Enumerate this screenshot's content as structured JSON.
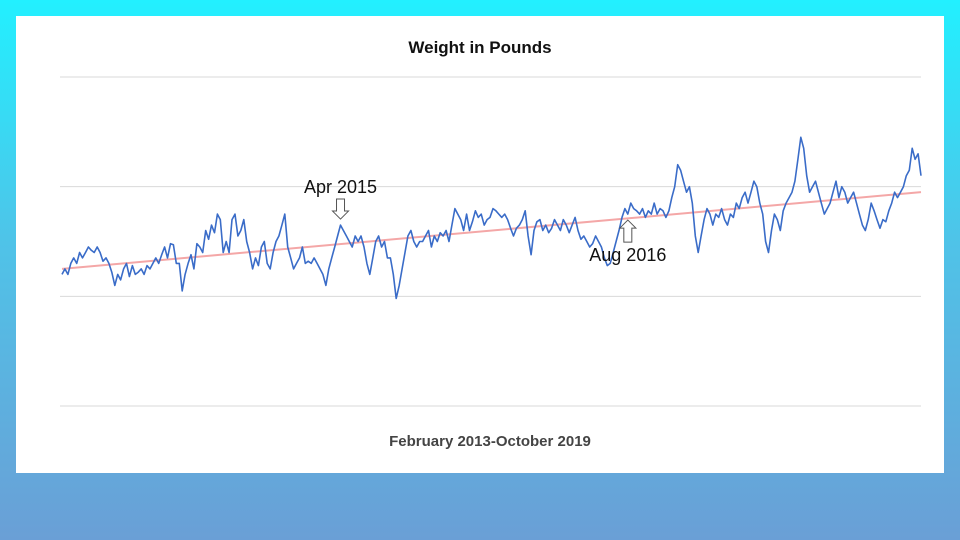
{
  "chart_data": {
    "type": "line",
    "title": "Weight in Pounds",
    "xlabel": "February 2013-October 2019",
    "ylabel": "",
    "x_range": [
      "2013-02",
      "2019-10"
    ],
    "ylim": [
      0,
      3
    ],
    "gridlines": 4,
    "grid": true,
    "colors": {
      "series": "#3a6cc8",
      "trend": "#f4a7a7",
      "grid": "#d9d9d9"
    },
    "series": [
      {
        "values": [
          1.2,
          1.25,
          1.2,
          1.3,
          1.35,
          1.3,
          1.4,
          1.35,
          1.4,
          1.45,
          1.42,
          1.4,
          1.45,
          1.4,
          1.32,
          1.35,
          1.3,
          1.22,
          1.1,
          1.2,
          1.15,
          1.25,
          1.3,
          1.18,
          1.28,
          1.2,
          1.22,
          1.25,
          1.2,
          1.28,
          1.25,
          1.3,
          1.35,
          1.3,
          1.38,
          1.45,
          1.35,
          1.48,
          1.47,
          1.3,
          1.3,
          1.05,
          1.2,
          1.3,
          1.38,
          1.25,
          1.48,
          1.45,
          1.4,
          1.6,
          1.52,
          1.65,
          1.58,
          1.75,
          1.7,
          1.4,
          1.5,
          1.4,
          1.7,
          1.75,
          1.55,
          1.6,
          1.7,
          1.5,
          1.4,
          1.25,
          1.35,
          1.28,
          1.45,
          1.5,
          1.3,
          1.25,
          1.4,
          1.5,
          1.55,
          1.65,
          1.75,
          1.45,
          1.35,
          1.25,
          1.3,
          1.35,
          1.45,
          1.3,
          1.32,
          1.3,
          1.35,
          1.3,
          1.25,
          1.2,
          1.1,
          1.25,
          1.35,
          1.45,
          1.55,
          1.65,
          1.6,
          1.55,
          1.5,
          1.45,
          1.55,
          1.5,
          1.55,
          1.45,
          1.3,
          1.2,
          1.35,
          1.5,
          1.55,
          1.45,
          1.5,
          1.35,
          1.35,
          1.2,
          0.98,
          1.1,
          1.25,
          1.4,
          1.55,
          1.6,
          1.5,
          1.45,
          1.5,
          1.5,
          1.55,
          1.6,
          1.45,
          1.55,
          1.5,
          1.58,
          1.55,
          1.6,
          1.5,
          1.65,
          1.8,
          1.75,
          1.7,
          1.6,
          1.75,
          1.6,
          1.68,
          1.78,
          1.72,
          1.75,
          1.65,
          1.7,
          1.72,
          1.8,
          1.78,
          1.75,
          1.72,
          1.75,
          1.7,
          1.62,
          1.55,
          1.62,
          1.65,
          1.7,
          1.78,
          1.55,
          1.38,
          1.6,
          1.68,
          1.7,
          1.6,
          1.65,
          1.58,
          1.62,
          1.7,
          1.65,
          1.6,
          1.7,
          1.65,
          1.58,
          1.65,
          1.72,
          1.6,
          1.52,
          1.55,
          1.5,
          1.45,
          1.48,
          1.55,
          1.5,
          1.45,
          1.35,
          1.28,
          1.3,
          1.4,
          1.5,
          1.6,
          1.72,
          1.8,
          1.75,
          1.85,
          1.8,
          1.78,
          1.75,
          1.8,
          1.72,
          1.78,
          1.75,
          1.85,
          1.75,
          1.8,
          1.78,
          1.72,
          1.78,
          1.9,
          2.0,
          2.2,
          2.15,
          2.05,
          1.95,
          2.0,
          1.85,
          1.55,
          1.4,
          1.55,
          1.7,
          1.8,
          1.75,
          1.65,
          1.75,
          1.72,
          1.8,
          1.7,
          1.65,
          1.75,
          1.72,
          1.85,
          1.8,
          1.9,
          1.95,
          1.85,
          1.95,
          2.05,
          2.0,
          1.85,
          1.75,
          1.5,
          1.4,
          1.6,
          1.75,
          1.7,
          1.6,
          1.78,
          1.85,
          1.9,
          1.95,
          2.05,
          2.25,
          2.45,
          2.35,
          2.1,
          1.95,
          2.0,
          2.05,
          1.95,
          1.85,
          1.75,
          1.8,
          1.85,
          1.95,
          2.05,
          1.9,
          2.0,
          1.95,
          1.85,
          1.9,
          1.95,
          1.85,
          1.75,
          1.65,
          1.6,
          1.7,
          1.85,
          1.78,
          1.7,
          1.62,
          1.7,
          1.68,
          1.78,
          1.85,
          1.95,
          1.9,
          1.95,
          2.0,
          2.1,
          2.15,
          2.35,
          2.25,
          2.3,
          2.1
        ]
      }
    ],
    "trend": {
      "start": 1.25,
      "end": 1.95
    },
    "annotations": [
      {
        "label": "Apr 2015",
        "index": 95,
        "direction": "down"
      },
      {
        "label": "Aug 2016",
        "index": 193,
        "direction": "up"
      }
    ]
  }
}
